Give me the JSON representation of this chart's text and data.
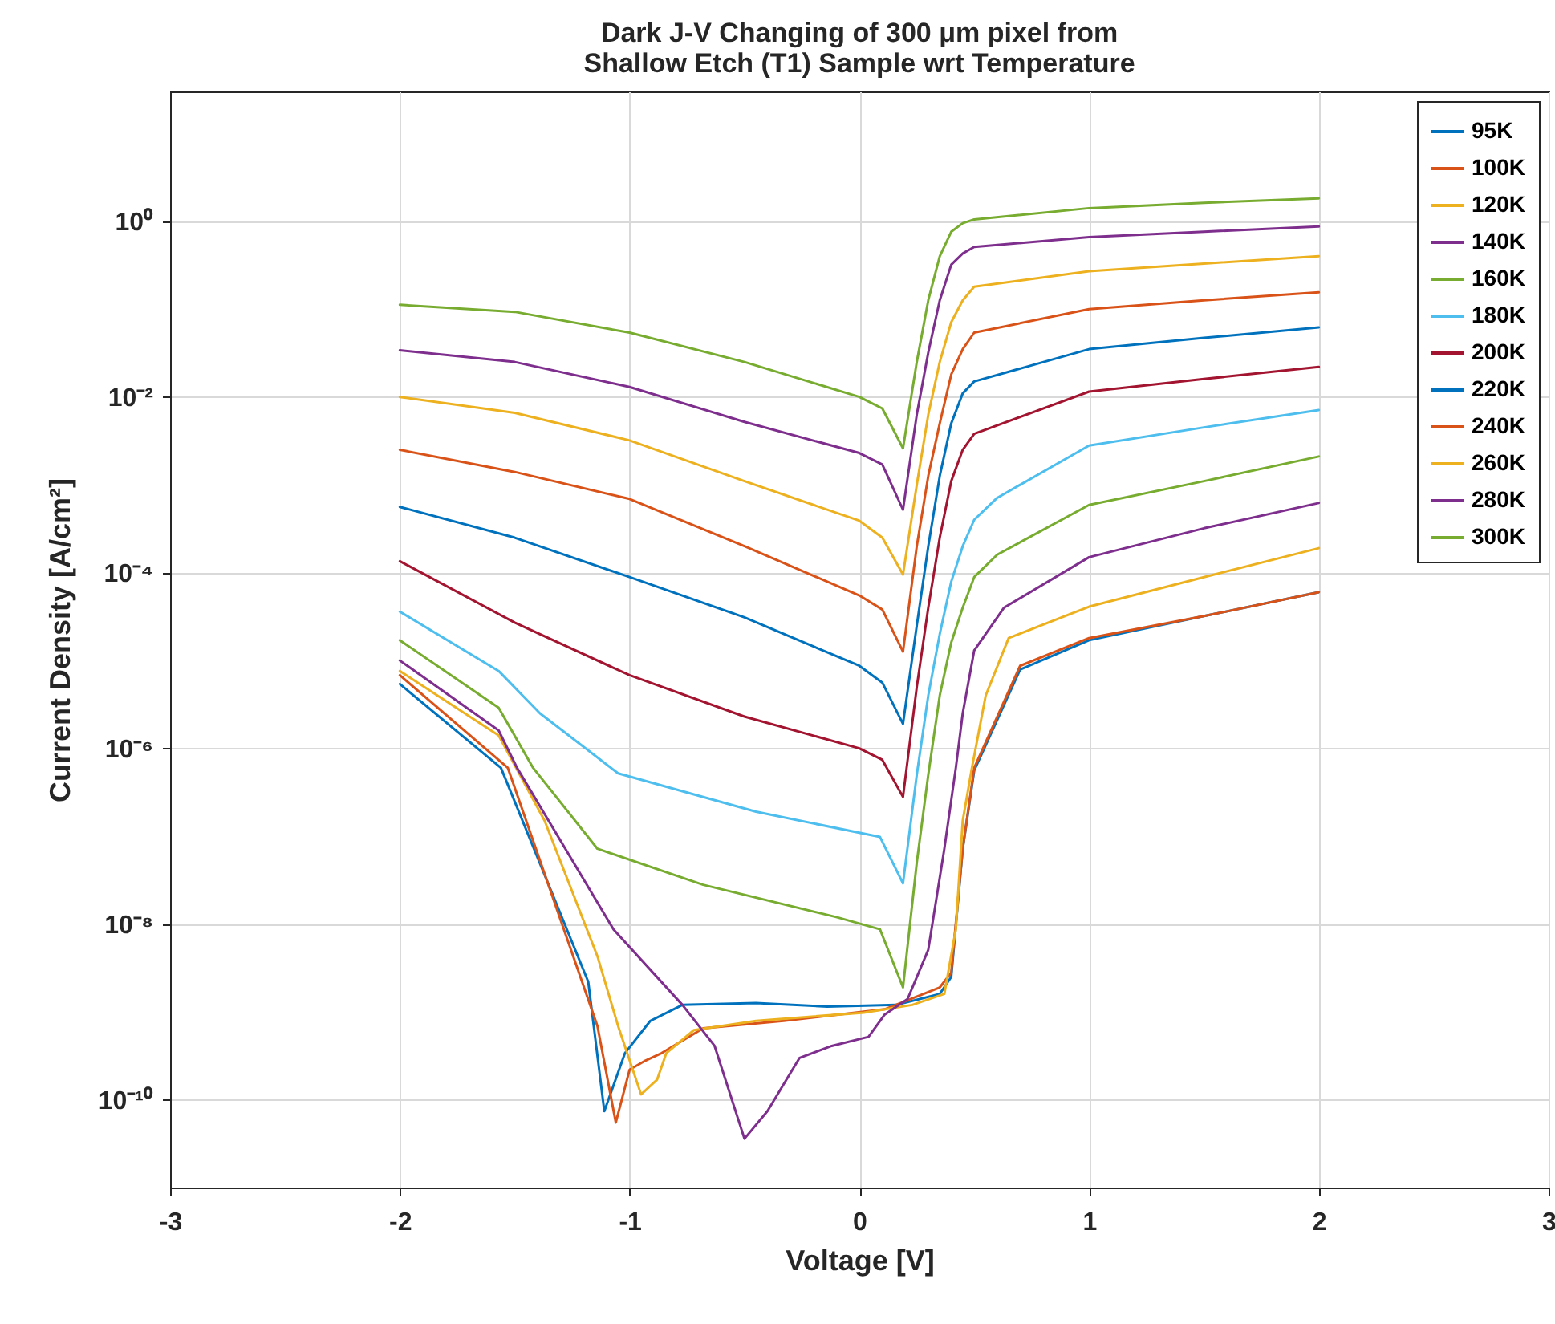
{
  "chart_data": {
    "type": "line",
    "title": "Dark J-V Changing of 300 μm pixel from\nShallow Etch (T1) Sample wrt Temperature",
    "xlabel": "Voltage [V]",
    "ylabel": "Current Density [A/cm²]",
    "log": "y",
    "grid": true,
    "legend": "top right",
    "line_style": "solid",
    "marker": "none",
    "xlim": [
      -3,
      3
    ],
    "xticks": [
      -3,
      -2,
      -1,
      0,
      1,
      2,
      3
    ],
    "ylim": [
      1e-11,
      30
    ],
    "yticks": [
      {
        "value": 1e-10,
        "label": "10⁻¹⁰"
      },
      {
        "value": 1e-08,
        "label": "10⁻⁸"
      },
      {
        "value": 1e-06,
        "label": "10⁻⁶"
      },
      {
        "value": 0.0001,
        "label": "10⁻⁴"
      },
      {
        "value": 0.01,
        "label": "10⁻²"
      },
      {
        "value": 1,
        "label": "10⁰"
      }
    ],
    "series": [
      {
        "name": "95K",
        "color": "#0072bd",
        "x": [
          -2,
          -1.56,
          -1.18,
          -1.11,
          -1.02,
          -0.91,
          -0.77,
          -0.45,
          -0.14,
          0.16,
          0.35,
          0.4,
          0.45,
          0.5,
          0.7,
          1,
          1.5,
          2
        ],
        "values": [
          5.4e-06,
          6e-07,
          2.2e-09,
          7.4e-11,
          3.4e-10,
          7.9e-10,
          1.2e-09,
          1.26e-09,
          1.15e-09,
          1.2e-09,
          1.6e-09,
          2.5e-09,
          7.2e-08,
          5.6e-07,
          7.9e-06,
          1.7e-05,
          3.2e-05,
          6e-05
        ]
      },
      {
        "name": "100K",
        "color": "#d95319",
        "x": [
          -2,
          -1.53,
          -1.14,
          -1.06,
          -1.0,
          -0.93,
          -0.86,
          -0.68,
          -0.33,
          0.11,
          0.35,
          0.4,
          0.45,
          0.5,
          0.7,
          1,
          1.5,
          2
        ],
        "values": [
          6.8e-06,
          6e-07,
          6.9e-10,
          5.5e-11,
          2.2e-10,
          2.8e-10,
          3.4e-10,
          6.5e-10,
          7.9e-10,
          1.07e-09,
          1.9e-09,
          2.8e-09,
          7.2e-08,
          6e-07,
          8.7e-06,
          1.8e-05,
          3.2e-05,
          6e-05
        ]
      },
      {
        "name": "120K",
        "color": "#edb120",
        "x": [
          -2,
          -1.57,
          -1.37,
          -1.14,
          -1.05,
          -0.95,
          -0.88,
          -0.84,
          -0.72,
          -0.45,
          0.02,
          0.23,
          0.37,
          0.42,
          0.45,
          0.49,
          0.55,
          0.65,
          1,
          1.5,
          2
        ],
        "values": [
          7.6e-06,
          1.4e-06,
          1.5e-07,
          4.3e-09,
          6.9e-10,
          1.15e-10,
          1.7e-10,
          3.4e-10,
          6.2e-10,
          7.9e-10,
          9.8e-10,
          1.2e-09,
          1.6e-09,
          8.7e-09,
          1.5e-07,
          6e-07,
          4e-06,
          1.8e-05,
          4.1e-05,
          8.9e-05,
          0.00019
        ]
      },
      {
        "name": "140K",
        "color": "#7e2f8e",
        "x": [
          -2,
          -1.57,
          -1.49,
          -1.07,
          -0.77,
          -0.63,
          -0.5,
          -0.4,
          -0.26,
          -0.12,
          0.04,
          0.11,
          0.21,
          0.3,
          0.37,
          0.42,
          0.45,
          0.5,
          0.63,
          1,
          1.5,
          2
        ],
        "values": [
          1e-05,
          1.6e-06,
          6e-07,
          8.7e-09,
          1.2e-09,
          4.1e-10,
          3.6e-11,
          7.4e-11,
          3e-10,
          4.1e-10,
          5.2e-10,
          9.3e-10,
          1.4e-09,
          5.1e-09,
          7.2e-08,
          6e-07,
          2.5e-06,
          1.3e-05,
          4e-05,
          0.00015,
          0.00032,
          0.00062
        ]
      },
      {
        "name": "160K",
        "color": "#77ac30",
        "x": [
          -2,
          -1.57,
          -1.42,
          -1.14,
          -0.68,
          -0.1,
          0.09,
          0.19,
          0.25,
          0.3,
          0.35,
          0.4,
          0.45,
          0.5,
          0.6,
          1,
          1.5,
          2
        ],
        "values": [
          1.7e-05,
          2.9e-06,
          6e-07,
          7.2e-08,
          2.8e-08,
          1.2e-08,
          8.7e-09,
          1.9e-09,
          5e-08,
          5e-07,
          4e-06,
          1.6e-05,
          4e-05,
          8.9e-05,
          0.00016,
          0.00059,
          0.0011,
          0.0021
        ]
      },
      {
        "name": "180K",
        "color": "#4dbeee",
        "x": [
          -2,
          -1.57,
          -1.39,
          -1.05,
          -0.45,
          0.09,
          0.19,
          0.25,
          0.3,
          0.35,
          0.4,
          0.45,
          0.5,
          0.6,
          1,
          1.5,
          2
        ],
        "values": [
          3.6e-05,
          7.6e-06,
          2.5e-06,
          5.2e-07,
          1.9e-07,
          9.8e-08,
          2.9e-08,
          5e-07,
          4e-06,
          2e-05,
          7.9e-05,
          0.0002,
          0.0004,
          0.00071,
          0.0028,
          0.0045,
          0.0071
        ]
      },
      {
        "name": "200K",
        "color": "#a2142f",
        "x": [
          -2,
          -1.5,
          -1,
          -0.5,
          0,
          0.1,
          0.19,
          0.25,
          0.3,
          0.35,
          0.4,
          0.45,
          0.5,
          1,
          1.5,
          2
        ],
        "values": [
          0.000135,
          2.7e-05,
          6.8e-06,
          2.3e-06,
          1e-06,
          7.4e-07,
          2.8e-07,
          5e-06,
          4e-05,
          0.00025,
          0.0011,
          0.0025,
          0.0038,
          0.0115,
          0.016,
          0.022
        ]
      },
      {
        "name": "220K",
        "color": "#0072bd",
        "x": [
          -2,
          -1.5,
          -1,
          -0.5,
          0,
          0.1,
          0.19,
          0.25,
          0.3,
          0.35,
          0.4,
          0.45,
          0.5,
          1,
          1.5,
          2
        ],
        "values": [
          0.00056,
          0.00025,
          8.9e-05,
          3.1e-05,
          8.7e-06,
          5.6e-06,
          1.9e-06,
          2.5e-05,
          0.0002,
          0.00126,
          0.005,
          0.011,
          0.015,
          0.035,
          0.047,
          0.062
        ]
      },
      {
        "name": "240K",
        "color": "#d95319",
        "x": [
          -2,
          -1.5,
          -1,
          -0.5,
          0,
          0.1,
          0.19,
          0.25,
          0.3,
          0.35,
          0.4,
          0.45,
          0.5,
          1,
          1.5,
          2
        ],
        "values": [
          0.0025,
          0.0014,
          0.00069,
          0.0002,
          5.5e-05,
          3.8e-05,
          1.26e-05,
          0.0002,
          0.00126,
          0.005,
          0.018,
          0.035,
          0.054,
          0.1,
          0.126,
          0.155
        ]
      },
      {
        "name": "260K",
        "color": "#edb120",
        "x": [
          -2,
          -1.5,
          -1,
          -0.5,
          0,
          0.1,
          0.19,
          0.25,
          0.3,
          0.35,
          0.4,
          0.45,
          0.5,
          1,
          1.5,
          2
        ],
        "values": [
          0.01,
          0.0066,
          0.0032,
          0.0011,
          0.00039,
          0.00025,
          9.5e-05,
          0.001,
          0.0063,
          0.025,
          0.071,
          0.126,
          0.18,
          0.27,
          0.33,
          0.4
        ]
      },
      {
        "name": "280K",
        "color": "#7e2f8e",
        "x": [
          -2,
          -1.5,
          -1,
          -0.5,
          0,
          0.1,
          0.19,
          0.25,
          0.3,
          0.35,
          0.4,
          0.45,
          0.5,
          1,
          1.5,
          2
        ],
        "values": [
          0.034,
          0.025,
          0.013,
          0.0052,
          0.0023,
          0.0017,
          0.00052,
          0.0063,
          0.032,
          0.126,
          0.32,
          0.43,
          0.51,
          0.66,
          0.76,
          0.87
        ]
      },
      {
        "name": "300K",
        "color": "#77ac30",
        "x": [
          -2,
          -1.5,
          -1,
          -0.5,
          0,
          0.1,
          0.19,
          0.25,
          0.3,
          0.35,
          0.4,
          0.45,
          0.5,
          1,
          1.5,
          2
        ],
        "values": [
          0.112,
          0.093,
          0.054,
          0.025,
          0.01,
          0.0074,
          0.0026,
          0.025,
          0.126,
          0.4,
          0.76,
          0.95,
          1.05,
          1.41,
          1.62,
          1.82
        ]
      }
    ]
  }
}
